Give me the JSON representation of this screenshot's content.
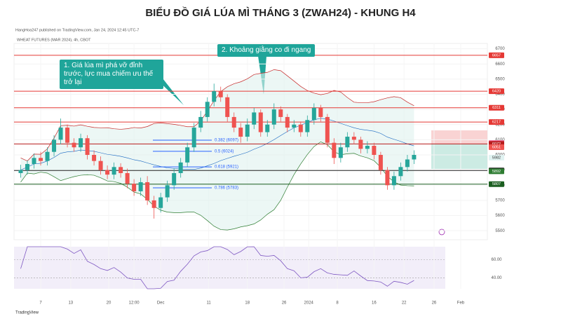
{
  "title": "BIỂU ĐỒ GIÁ LÚA MÌ THÁNG 3 (ZWAH24) - KHUNG H4",
  "publisher": "HangHoa247 published on TradingView.com, Jan 24, 2024 12:45 UTC-7",
  "symbol": "WHEAT FUTURES (MAR 2024), 4h, CBOT",
  "footer": "TradingView",
  "chart_data": {
    "type": "candlestick",
    "open": [
      5880,
      5900,
      5940,
      5980,
      5960,
      6020,
      6100,
      6180,
      6080,
      6050,
      6110,
      6000,
      5960,
      5900,
      5870,
      5920,
      5880,
      5810,
      5760,
      5820,
      5700,
      5650,
      5720,
      5800,
      5880,
      5950,
      6050,
      6180,
      6250,
      6350,
      6420,
      6380,
      6250,
      6180,
      6120,
      6200,
      6280,
      6150,
      6200,
      6300,
      6250,
      6180,
      6200,
      6150,
      6230,
      6310,
      6250,
      6080,
      5980,
      6050,
      6120,
      6100,
      6040,
      6060,
      6000,
      5900,
      5800,
      5860,
      5920,
      5970
    ],
    "high": [
      5935,
      5965,
      6010,
      6020,
      6050,
      6130,
      6240,
      6200,
      6110,
      6140,
      6130,
      6030,
      5990,
      5930,
      5950,
      5945,
      5910,
      5840,
      5850,
      5860,
      5730,
      5750,
      5830,
      5910,
      5980,
      6080,
      6210,
      6290,
      6380,
      6470,
      6450,
      6400,
      6280,
      6210,
      6240,
      6310,
      6300,
      6230,
      6340,
      6320,
      6270,
      6230,
      6220,
      6260,
      6340,
      6330,
      6270,
      6110,
      6080,
      6150,
      6150,
      6120,
      6090,
      6080,
      6020,
      5920,
      5890,
      5950,
      6000,
      6030
    ],
    "low": [
      5850,
      5870,
      5910,
      5930,
      5930,
      5990,
      6070,
      6050,
      6020,
      6020,
      5970,
      5930,
      5870,
      5840,
      5840,
      5850,
      5780,
      5730,
      5730,
      5670,
      5580,
      5620,
      5690,
      5770,
      5850,
      5920,
      6020,
      6150,
      6220,
      6320,
      6350,
      6220,
      6150,
      6080,
      6090,
      6170,
      6120,
      6120,
      6170,
      6220,
      6150,
      6150,
      6120,
      6120,
      6200,
      6220,
      6050,
      5940,
      5950,
      6020,
      6070,
      6010,
      6010,
      5970,
      5870,
      5770,
      5770,
      5830,
      5890,
      5940
    ],
    "close": [
      5900,
      5940,
      5980,
      5960,
      6020,
      6100,
      6180,
      6080,
      6050,
      6110,
      6000,
      5960,
      5900,
      5870,
      5920,
      5880,
      5810,
      5760,
      5820,
      5700,
      5650,
      5720,
      5800,
      5880,
      5950,
      6050,
      6180,
      6250,
      6350,
      6420,
      6380,
      6250,
      6180,
      6120,
      6200,
      6280,
      6150,
      6200,
      6300,
      6250,
      6180,
      6200,
      6150,
      6230,
      6310,
      6250,
      6080,
      5980,
      6050,
      6120,
      6100,
      6040,
      6060,
      6000,
      5900,
      5800,
      5860,
      5920,
      5970,
      6000
    ],
    "up_color": "#26a69a",
    "down_color": "#ef5350",
    "xlim": [
      -1,
      70
    ],
    "xticks": [
      {
        "value": 3,
        "label": "7"
      },
      {
        "value": 7.5,
        "label": "13"
      },
      {
        "value": 13.2,
        "label": "20"
      },
      {
        "value": 17,
        "label": "12:00"
      },
      {
        "value": 21,
        "label": "Dec"
      },
      {
        "value": 28.2,
        "label": "11"
      },
      {
        "value": 34,
        "label": "18"
      },
      {
        "value": 39.5,
        "label": "26"
      },
      {
        "value": 43.2,
        "label": "2024"
      },
      {
        "value": 47.5,
        "label": "8"
      },
      {
        "value": 53,
        "label": "16"
      },
      {
        "value": 57.5,
        "label": "22"
      },
      {
        "value": 62,
        "label": "26"
      },
      {
        "value": 66,
        "label": "Feb"
      }
    ],
    "ylim": [
      5450,
      6735
    ],
    "yticks": [
      5500,
      5600,
      5700,
      5800,
      5900,
      6000,
      6100,
      6200,
      6300,
      6400,
      6500,
      6600,
      6700
    ],
    "levels": [
      {
        "value": 6657,
        "label": "6657",
        "color": "#e53935",
        "line": true
      },
      {
        "value": 6420,
        "label": "6420",
        "color": "#e53935",
        "line": true
      },
      {
        "value": 6311,
        "label": "6311",
        "color": "#e53935",
        "line": true
      },
      {
        "value": 6217,
        "label": "6217",
        "color": "#e53935",
        "line": true
      },
      {
        "value": 6078,
        "label": "6078",
        "color": "#f06292",
        "line": false
      },
      {
        "value": 6072,
        "label": "6072",
        "color": "#b71c1c",
        "line": true
      },
      {
        "value": 6051,
        "label": "6051",
        "color": "#ef5350",
        "line": false
      },
      {
        "value": 5982,
        "label": "5982",
        "color": "#e0f2f1",
        "line": false
      },
      {
        "value": 5897,
        "label": "5897",
        "color": "#212121",
        "line": true
      },
      {
        "value": 5892,
        "label": "5892",
        "color": "#2e7d32",
        "line": false
      },
      {
        "value": 5807,
        "label": "5807",
        "color": "#1b5e20",
        "line": true
      }
    ],
    "fibonacci": [
      {
        "value": 6097,
        "label": "0.382 (6097)"
      },
      {
        "value": 6024,
        "label": "0.5 (6024)"
      },
      {
        "value": 5921,
        "label": "0.618 (5921)"
      },
      {
        "value": 5783,
        "label": "0.786 (5783)"
      }
    ],
    "annotations": [
      "1. Giá lúa mì phá vỡ đỉnh trước, lực mua chiếm ưu thế trở lại",
      "2. Khoảng giằng co đi ngang"
    ],
    "rsi": {
      "ylim": [
        28,
        74
      ],
      "yticks": [
        {
          "value": 60,
          "label": "60.00"
        },
        {
          "value": 40,
          "label": "40.00"
        }
      ]
    }
  }
}
